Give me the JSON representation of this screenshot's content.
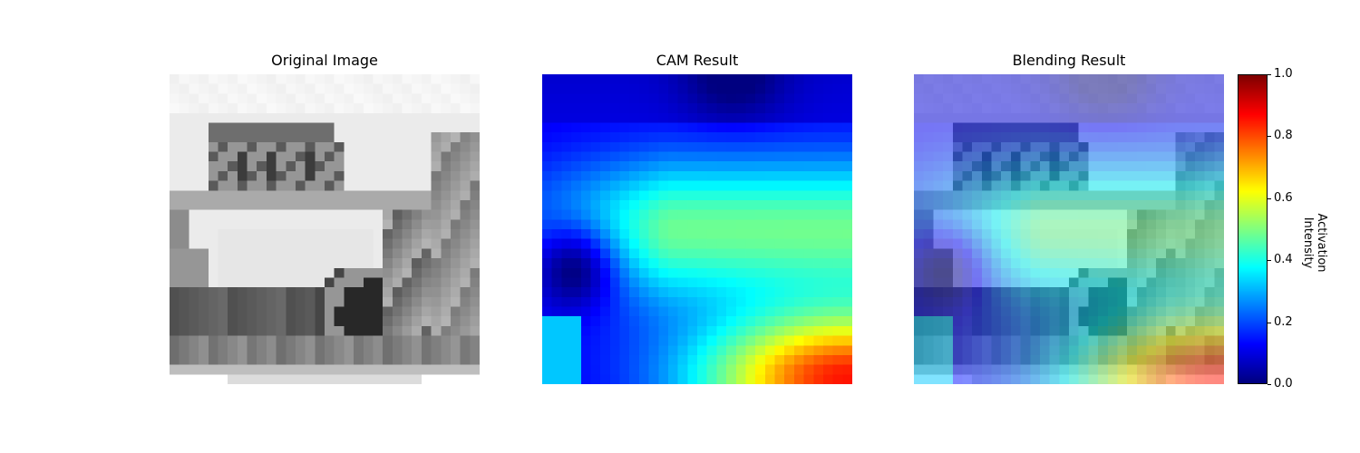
{
  "chart_data": {
    "type": "heatmap",
    "panels": [
      {
        "title": "Original Image",
        "kind": "grayscale"
      },
      {
        "title": "CAM Result",
        "kind": "activation-jet"
      },
      {
        "title": "Blending Result",
        "kind": "grayscale-with-jet-overlay"
      }
    ],
    "colorbar": {
      "label": "Activation Intensity",
      "colormap": "jet",
      "range": [
        0.0,
        1.0
      ],
      "ticks": [
        "0.0",
        "0.2",
        "0.4",
        "0.6",
        "0.8",
        "1.0"
      ]
    },
    "image_grid": [
      32,
      32
    ]
  }
}
